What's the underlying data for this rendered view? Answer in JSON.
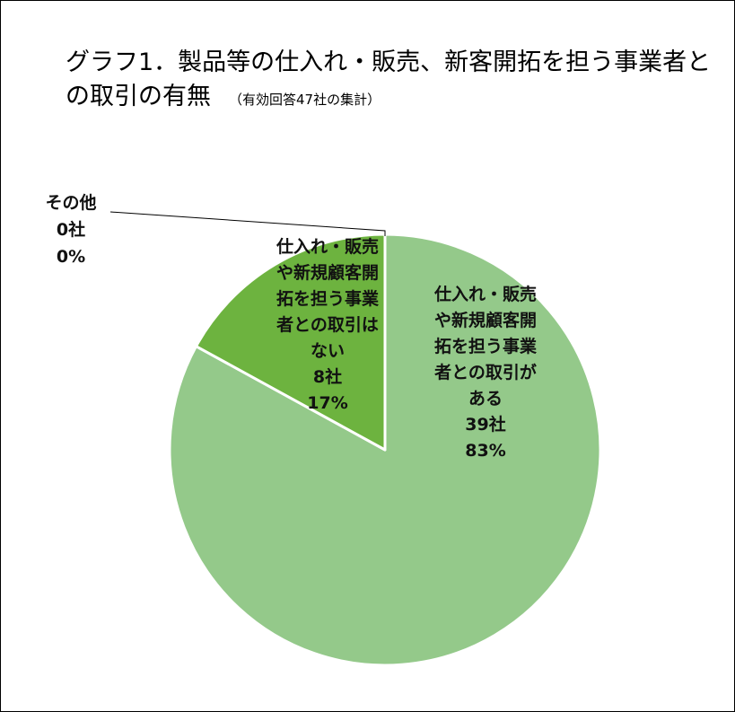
{
  "title": {
    "main": "グラフ1．製品等の仕入れ・販売、新客開拓を担う事業者との取引の有無",
    "note": "（有効回答47社の集計）"
  },
  "chart_data": {
    "type": "pie",
    "title": "グラフ1．製品等の仕入れ・販売、新客開拓を担う事業者との取引の有無",
    "subtitle": "（有効回答47社の集計）",
    "start_angle_deg": 0,
    "direction": "clockwise",
    "slices": [
      {
        "label_lines": [
          "その他",
          "0社",
          "0%"
        ],
        "value": 0,
        "percent": "0%",
        "count_label": "0社",
        "color": "#5a8f2a"
      },
      {
        "label_lines": [
          "仕入れ・販売",
          "や新規顧客開",
          "拓を担う事業",
          "者との取引が",
          "ある",
          "39社",
          "83%"
        ],
        "value": 39,
        "percent": "83%",
        "count_label": "39社",
        "color": "#94c98a"
      },
      {
        "label_lines": [
          "仕入れ・販売",
          "や新規顧客開",
          "拓を担う事業",
          "者との取引は",
          "ない",
          "8社",
          "17%"
        ],
        "value": 8,
        "percent": "17%",
        "count_label": "8社",
        "color": "#6db33f"
      }
    ]
  }
}
